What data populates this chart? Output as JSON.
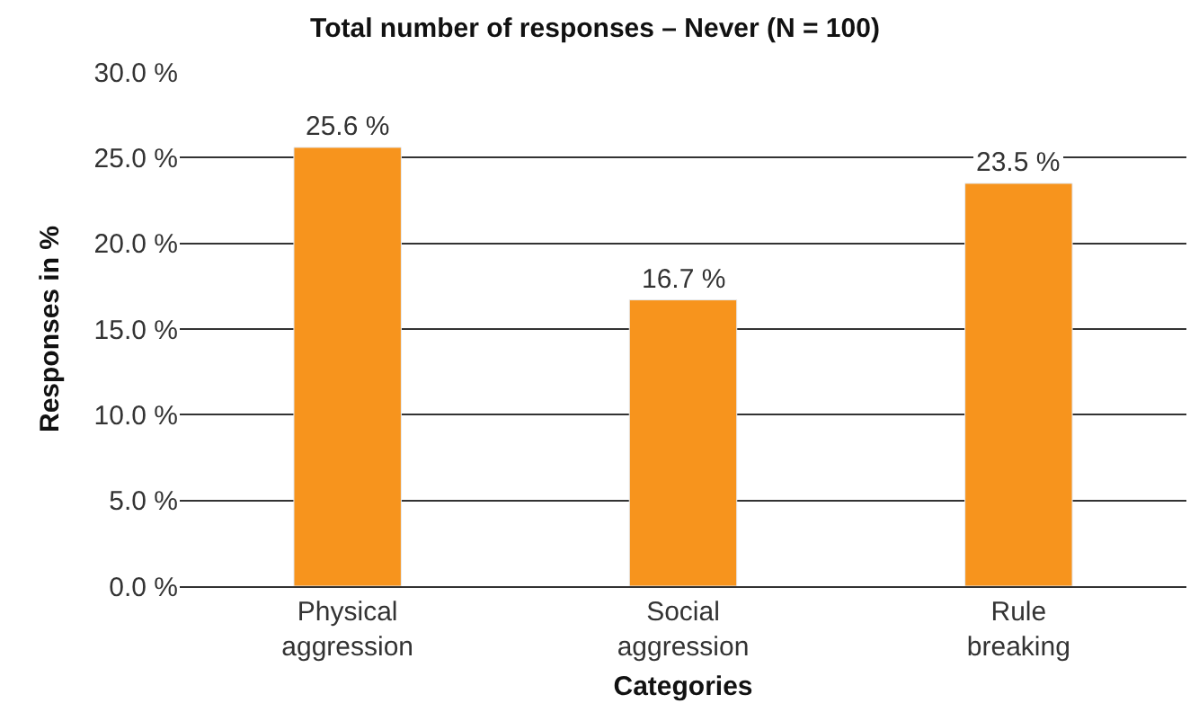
{
  "chart_data": {
    "type": "bar",
    "title": "Total number of responses – Never (N = 100)",
    "xlabel": "Categories",
    "ylabel": "Responses in %",
    "categories": [
      "Physical aggression",
      "Social aggression",
      "Rule breaking"
    ],
    "values": [
      25.6,
      16.7,
      23.5
    ],
    "color": "#f7941d",
    "value_labels": [
      "25.6 %",
      "16.7 %",
      "23.5 %"
    ],
    "ylim": [
      0,
      30
    ],
    "yticks": [
      {
        "value": 0,
        "label": "0.0 %"
      },
      {
        "value": 5,
        "label": "5.0 %"
      },
      {
        "value": 10,
        "label": "10.0 %"
      },
      {
        "value": 15,
        "label": "15.0 %"
      },
      {
        "value": 20,
        "label": "20.0 %"
      },
      {
        "value": 25,
        "label": "25.0 %"
      },
      {
        "value": 30,
        "label": "30.0 %"
      }
    ],
    "grid": "y",
    "legend": false
  }
}
